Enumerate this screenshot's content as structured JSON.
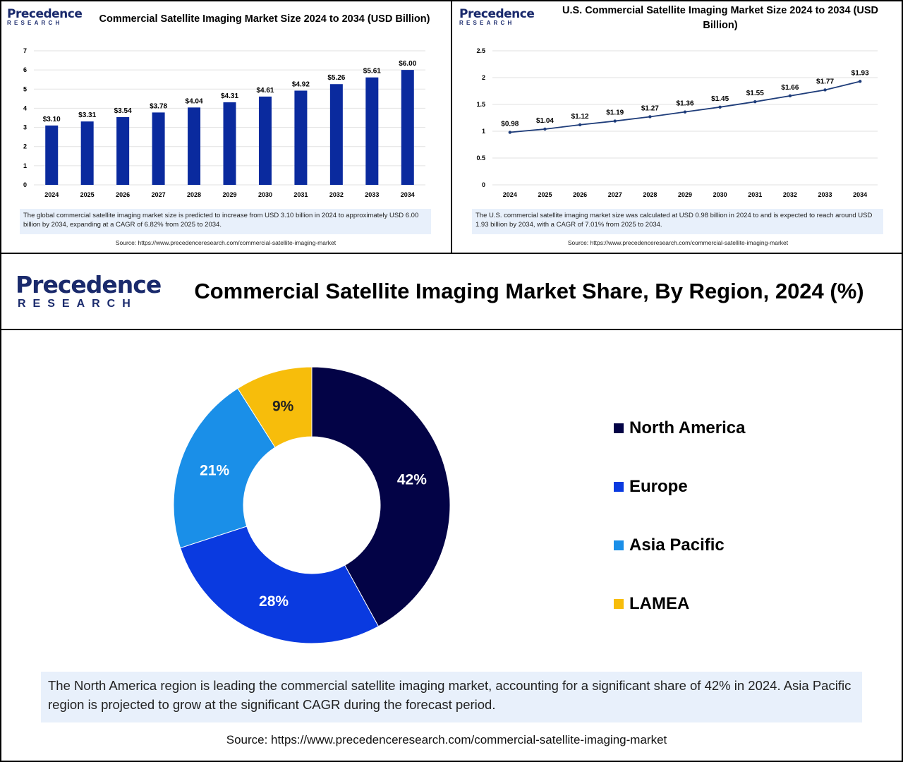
{
  "logo": {
    "word": "Precedence",
    "sub": "RESEARCH"
  },
  "panels": {
    "left": {
      "title": "Commercial Satellite Imaging Market Size 2024 to 2034 (USD Billion)",
      "note": "The global commercial satellite imaging market size is predicted to increase from USD 3.10 billion in 2024 to approximately USD 6.00 billion by 2034, expanding at a CAGR of 6.82% from 2025 to 2034.",
      "source": "Source: https://www.precedenceresearch.com/commercial-satellite-imaging-market"
    },
    "right": {
      "title": "U.S. Commercial Satellite Imaging Market Size 2024 to 2034 (USD Billion)",
      "note": "The U.S. commercial satellite imaging market size was calculated at USD 0.98 billion in 2024 to and is expected to reach around USD 1.93 billion by 2034, with a CAGR of 7.01% from 2025 to 2034.",
      "source": "Source: https://www.precedenceresearch.com/commercial-satellite-imaging-market"
    }
  },
  "main": {
    "title": "Commercial Satellite Imaging Market Share, By Region, 2024 (%)",
    "summary": "The North America region is leading the commercial satellite imaging market, accounting for a significant share of 42% in 2024. Asia Pacific region is projected to grow at the significant CAGR during the forecast period.",
    "source": "Source: https://www.precedenceresearch.com/commercial-satellite-imaging-market"
  },
  "colors": {
    "bar": "#0a2a9e",
    "line": "#1f3d7a",
    "north_america": "#030346",
    "europe": "#0a3ae0",
    "asia_pacific": "#1a8fe8",
    "lamea": "#f7bd0b"
  },
  "chart_data": [
    {
      "type": "bar",
      "title": "Commercial Satellite Imaging Market Size 2024 to 2034 (USD Billion)",
      "categories": [
        "2024",
        "2025",
        "2026",
        "2027",
        "2028",
        "2029",
        "2030",
        "2031",
        "2032",
        "2033",
        "2034"
      ],
      "values": [
        3.1,
        3.31,
        3.54,
        3.78,
        4.04,
        4.31,
        4.61,
        4.92,
        5.26,
        5.61,
        6.0
      ],
      "data_labels": [
        "$3.10",
        "$3.31",
        "$3.54",
        "$3.78",
        "$4.04",
        "$4.31",
        "$4.61",
        "$4.92",
        "$5.26",
        "$5.61",
        "$6.00"
      ],
      "yticks": [
        "0",
        "1",
        "2",
        "3",
        "4",
        "5",
        "6",
        "7"
      ],
      "ylim": [
        0,
        7
      ],
      "grid": true
    },
    {
      "type": "line",
      "title": "U.S. Commercial Satellite Imaging Market Size 2024 to 2034 (USD Billion)",
      "categories": [
        "2024",
        "2025",
        "2026",
        "2027",
        "2028",
        "2029",
        "2030",
        "2031",
        "2032",
        "2033",
        "2034"
      ],
      "values": [
        0.98,
        1.04,
        1.12,
        1.19,
        1.27,
        1.36,
        1.45,
        1.55,
        1.66,
        1.77,
        1.93
      ],
      "data_labels": [
        "$0.98",
        "$1.04",
        "$1.12",
        "$1.19",
        "$1.27",
        "$1.36",
        "$1.45",
        "$1.55",
        "$1.66",
        "$1.77",
        "$1.93"
      ],
      "yticks": [
        "0",
        "0.5",
        "1",
        "1.5",
        "2",
        "2.5"
      ],
      "ylim": [
        0,
        2.5
      ],
      "grid": true
    },
    {
      "type": "pie",
      "title": "Commercial Satellite Imaging Market Share, By Region, 2024 (%)",
      "labels": [
        "North America",
        "Europe",
        "Asia Pacific",
        "LAMEA"
      ],
      "values": [
        42,
        28,
        21,
        9
      ],
      "data_labels": [
        "42%",
        "28%",
        "21%",
        "9%"
      ],
      "legend": "right"
    }
  ]
}
